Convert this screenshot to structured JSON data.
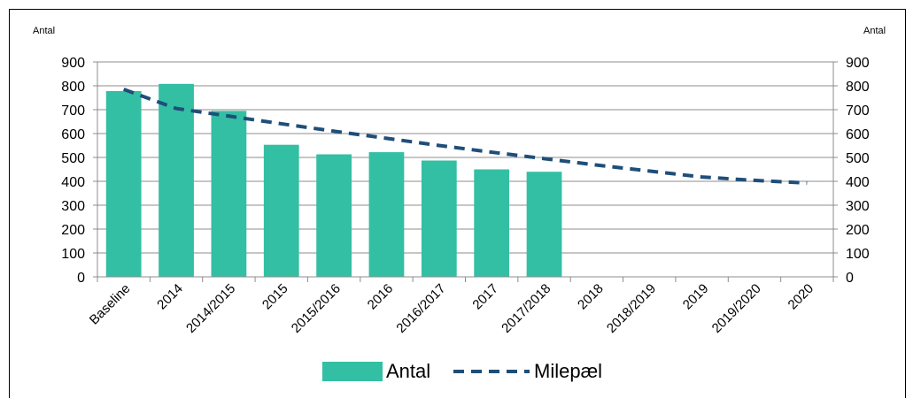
{
  "chart_data": {
    "type": "bar",
    "title": "",
    "y_unit_left": "Antal",
    "y_unit_right": "Antal",
    "ylim": [
      0,
      900
    ],
    "ytick_step": 100,
    "categories": [
      "Baseline",
      "2014",
      "2014/2015",
      "2015",
      "2015/2016",
      "2016",
      "2016/2017",
      "2017",
      "2017/2018",
      "2018",
      "2018/2019",
      "2019",
      "2019/2020",
      "2020"
    ],
    "series": [
      {
        "name": "Antal",
        "kind": "bar",
        "color": "#33BFA3",
        "values": [
          778,
          808,
          695,
          553,
          513,
          522,
          487,
          450,
          440,
          null,
          null,
          null,
          null,
          null
        ]
      },
      {
        "name": "Milepæl",
        "kind": "line",
        "style": "dashed",
        "color": "#1F4E79",
        "values": [
          785,
          705,
          673,
          641,
          610,
          580,
          550,
          522,
          495,
          468,
          443,
          418,
          404,
          393
        ]
      }
    ],
    "grid": "horizontal",
    "legend": "bottom-center"
  }
}
